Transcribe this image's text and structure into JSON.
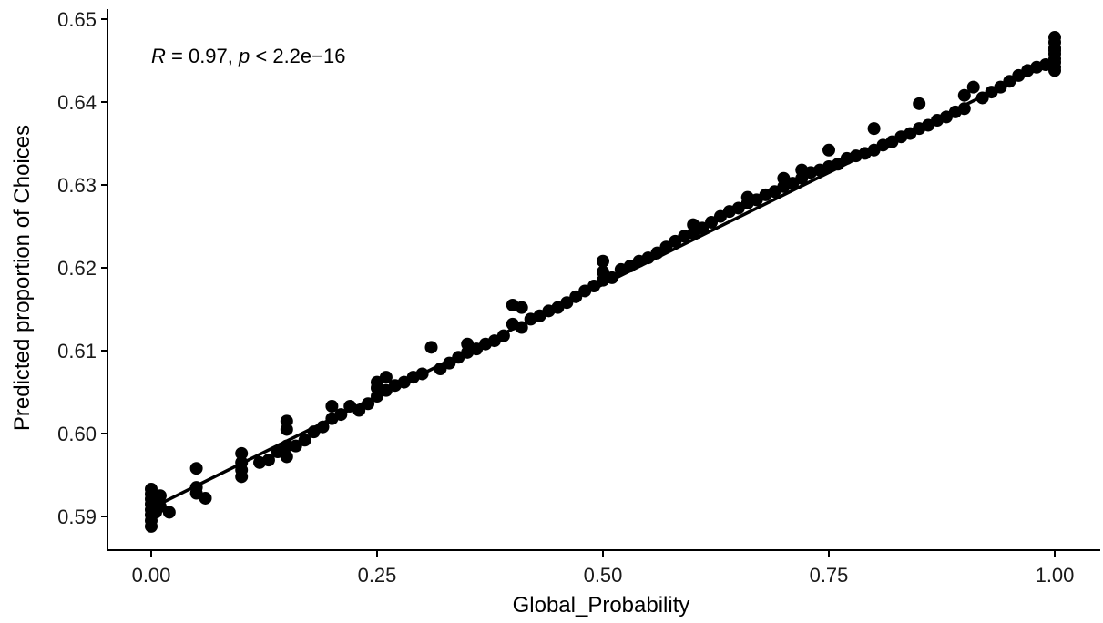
{
  "chart_data": {
    "type": "scatter",
    "title": "",
    "xlabel": "Global_Probability",
    "ylabel": "Predicted proportion of Choices",
    "xlim": [
      -0.05,
      1.05
    ],
    "ylim": [
      0.587,
      0.6505
    ],
    "xticks": [
      {
        "value": 0.0,
        "label": "0.00"
      },
      {
        "value": 0.25,
        "label": "0.25"
      },
      {
        "value": 0.5,
        "label": "0.50"
      },
      {
        "value": 0.75,
        "label": "0.75"
      },
      {
        "value": 1.0,
        "label": "1.00"
      }
    ],
    "yticks": [
      {
        "value": 0.59,
        "label": "0.59"
      },
      {
        "value": 0.6,
        "label": "0.60"
      },
      {
        "value": 0.61,
        "label": "0.61"
      },
      {
        "value": 0.62,
        "label": "0.62"
      },
      {
        "value": 0.63,
        "label": "0.63"
      },
      {
        "value": 0.64,
        "label": "0.64"
      },
      {
        "value": 0.65,
        "label": "0.65"
      }
    ],
    "annotation": {
      "r_symbol": "R",
      "r_text": " = 0.97, ",
      "p_symbol": "p",
      "p_text": " < 2.2e−16"
    },
    "fit_line": {
      "x": [
        0.0,
        1.0
      ],
      "y": [
        0.591,
        0.645
      ]
    },
    "colors": {
      "points": "#000000",
      "line": "#000000"
    },
    "grid": false,
    "series": [
      {
        "x": [
          0.0,
          0.0,
          0.0,
          0.0,
          0.0,
          0.0,
          0.0,
          0.0,
          0.005,
          0.005,
          0.01,
          0.01,
          0.02,
          0.05,
          0.05,
          0.05,
          0.06,
          0.1,
          0.1,
          0.1,
          0.1,
          0.12,
          0.13,
          0.14,
          0.15,
          0.15,
          0.15,
          0.15,
          0.16,
          0.17,
          0.18,
          0.19,
          0.2,
          0.2,
          0.21,
          0.22,
          0.23,
          0.24,
          0.25,
          0.25,
          0.25,
          0.26,
          0.26,
          0.27,
          0.28,
          0.29,
          0.3,
          0.31,
          0.32,
          0.33,
          0.34,
          0.35,
          0.35,
          0.36,
          0.37,
          0.38,
          0.39,
          0.4,
          0.4,
          0.41,
          0.41,
          0.42,
          0.43,
          0.44,
          0.45,
          0.46,
          0.47,
          0.48,
          0.49,
          0.5,
          0.5,
          0.5,
          0.51,
          0.52,
          0.53,
          0.54,
          0.55,
          0.56,
          0.57,
          0.58,
          0.59,
          0.6,
          0.6,
          0.61,
          0.62,
          0.63,
          0.64,
          0.65,
          0.66,
          0.66,
          0.67,
          0.68,
          0.69,
          0.7,
          0.7,
          0.71,
          0.72,
          0.72,
          0.73,
          0.74,
          0.75,
          0.75,
          0.76,
          0.77,
          0.78,
          0.79,
          0.8,
          0.8,
          0.81,
          0.82,
          0.83,
          0.84,
          0.85,
          0.85,
          0.86,
          0.87,
          0.88,
          0.89,
          0.9,
          0.9,
          0.91,
          0.92,
          0.93,
          0.94,
          0.95,
          0.96,
          0.97,
          0.98,
          0.99,
          1.0,
          1.0,
          1.0,
          1.0,
          1.0,
          1.0,
          1.0,
          1.0,
          1.0
        ],
        "y": [
          0.5888,
          0.5895,
          0.5902,
          0.5908,
          0.5915,
          0.5921,
          0.5927,
          0.5933,
          0.5905,
          0.5918,
          0.5912,
          0.5925,
          0.5905,
          0.5928,
          0.5935,
          0.5958,
          0.5922,
          0.5948,
          0.5956,
          0.5965,
          0.5976,
          0.5965,
          0.5968,
          0.5978,
          0.5972,
          0.5985,
          0.6005,
          0.6015,
          0.5985,
          0.5992,
          0.6002,
          0.6008,
          0.6018,
          0.6033,
          0.6023,
          0.6033,
          0.6028,
          0.6036,
          0.6045,
          0.6055,
          0.6062,
          0.6052,
          0.6068,
          0.6058,
          0.6062,
          0.6068,
          0.6072,
          0.6104,
          0.6078,
          0.6085,
          0.6092,
          0.6098,
          0.6108,
          0.6102,
          0.6108,
          0.6112,
          0.6118,
          0.6132,
          0.6155,
          0.6128,
          0.6152,
          0.6138,
          0.6142,
          0.6148,
          0.6152,
          0.6158,
          0.6165,
          0.6172,
          0.6178,
          0.6185,
          0.6195,
          0.6208,
          0.6188,
          0.6198,
          0.6202,
          0.6208,
          0.6212,
          0.6218,
          0.6225,
          0.6232,
          0.6238,
          0.6242,
          0.6252,
          0.6248,
          0.6255,
          0.6262,
          0.6268,
          0.6272,
          0.6278,
          0.6285,
          0.6282,
          0.6288,
          0.6292,
          0.6298,
          0.6308,
          0.6302,
          0.6308,
          0.6318,
          0.6315,
          0.6318,
          0.6322,
          0.6342,
          0.6325,
          0.6332,
          0.6335,
          0.6338,
          0.6342,
          0.6368,
          0.6348,
          0.6352,
          0.6358,
          0.6362,
          0.6368,
          0.6398,
          0.6372,
          0.6378,
          0.6382,
          0.6388,
          0.6392,
          0.6408,
          0.6418,
          0.6405,
          0.6412,
          0.6418,
          0.6425,
          0.6432,
          0.6438,
          0.6442,
          0.6445,
          0.6438,
          0.6442,
          0.6448,
          0.6452,
          0.6458,
          0.6465,
          0.6472,
          0.6478,
          0.6462
        ]
      }
    ]
  }
}
